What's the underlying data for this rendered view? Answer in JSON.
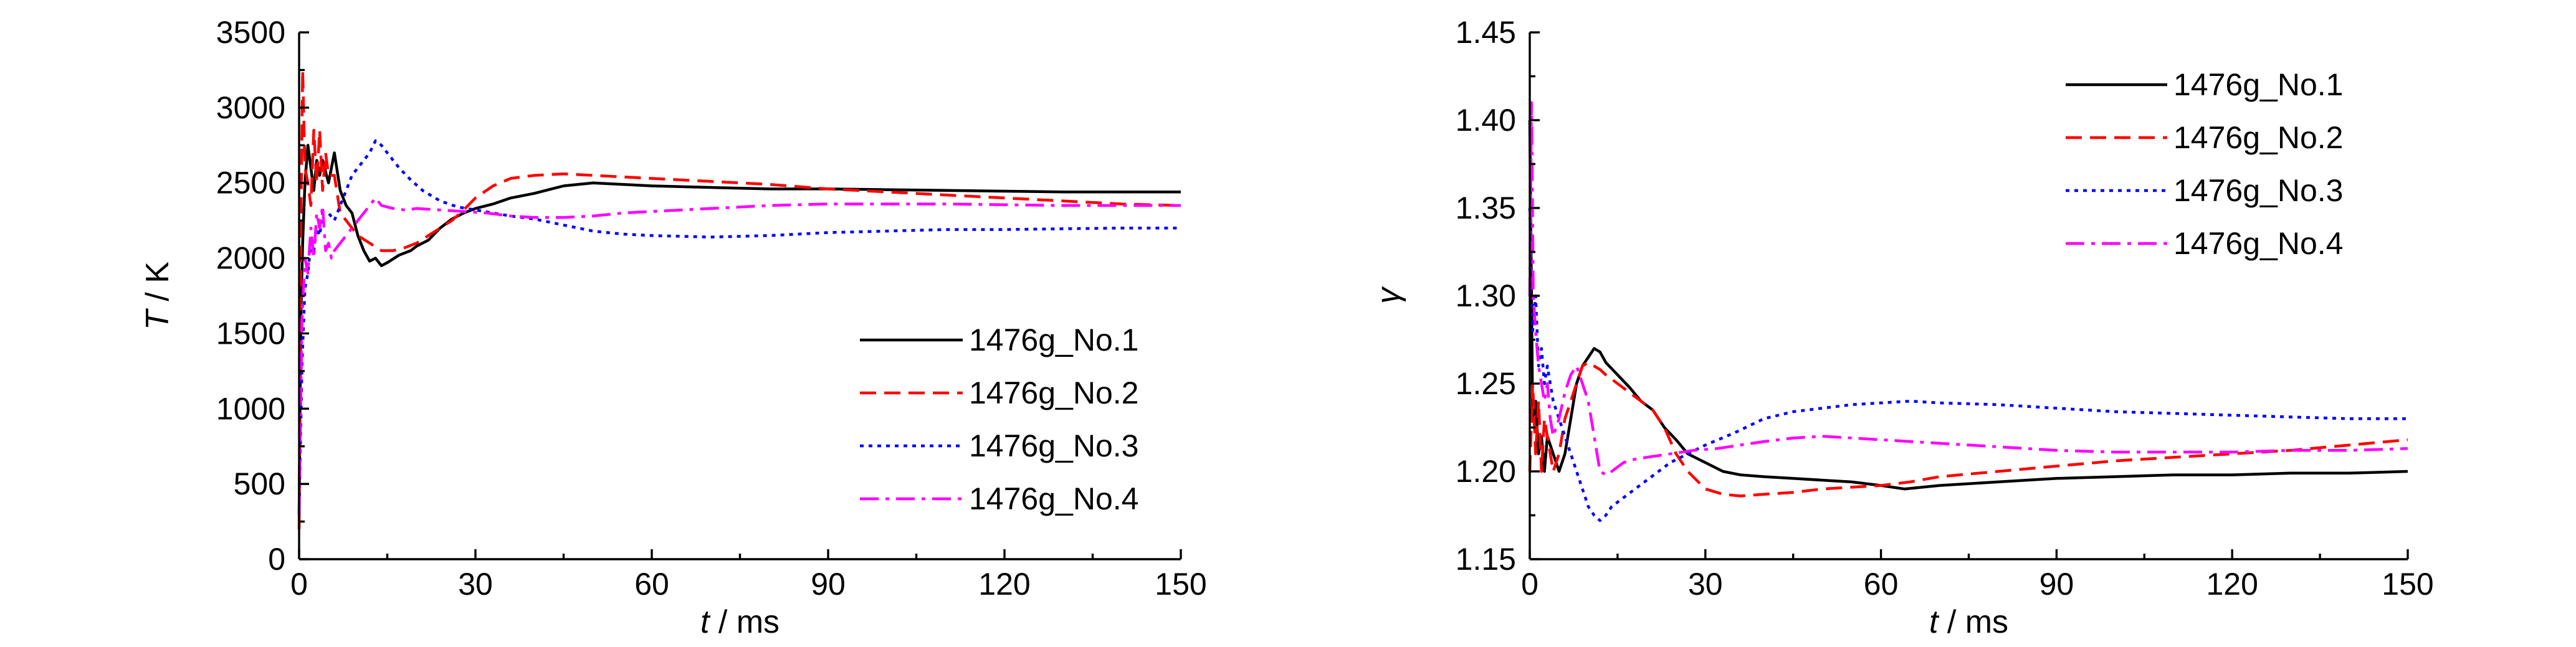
{
  "chart_data": [
    {
      "type": "line",
      "xlabel_var": "t",
      "xlabel_unit": " / ms",
      "ylabel_var": "T",
      "ylabel_unit": " / K",
      "xlim": [
        0,
        150
      ],
      "ylim": [
        0,
        3500
      ],
      "xticks": [
        0,
        30,
        60,
        90,
        120,
        150
      ],
      "yticks": [
        0,
        500,
        1000,
        1500,
        2000,
        2500,
        3000,
        3500
      ],
      "y_decimals": 0,
      "grid": false,
      "legend_position": "center-right",
      "series": [
        {
          "name": "1476g_No.1",
          "color": "#000000",
          "dash": "solid",
          "x": [
            0,
            0.3,
            0.6,
            1,
            1.5,
            2,
            2.5,
            3,
            3.5,
            4,
            5,
            6,
            7,
            8,
            9,
            10,
            11,
            12,
            13,
            14,
            15,
            17,
            19,
            20,
            22,
            24,
            26,
            28,
            30,
            33,
            36,
            40,
            45,
            50,
            55,
            60,
            70,
            80,
            90,
            100,
            110,
            120,
            130,
            140,
            150
          ],
          "y": [
            300,
            1600,
            2100,
            2500,
            2750,
            2600,
            2450,
            2650,
            2550,
            2650,
            2500,
            2700,
            2450,
            2350,
            2300,
            2150,
            2050,
            1980,
            2000,
            1950,
            1970,
            2020,
            2050,
            2080,
            2120,
            2200,
            2260,
            2300,
            2330,
            2360,
            2400,
            2430,
            2480,
            2500,
            2490,
            2480,
            2470,
            2460,
            2460,
            2455,
            2450,
            2445,
            2440,
            2440,
            2440
          ]
        },
        {
          "name": "1476g_No.2",
          "color": "#ff0000",
          "dash": "dashed",
          "x": [
            0,
            0.3,
            0.6,
            1,
            1.5,
            2,
            2.5,
            3,
            3.5,
            4,
            4.5,
            5,
            6,
            7,
            8,
            10,
            12,
            14,
            16,
            18,
            20,
            22,
            24,
            26,
            28,
            30,
            33,
            36,
            40,
            45,
            50,
            60,
            70,
            80,
            90,
            100,
            110,
            120,
            130,
            140,
            150
          ],
          "y": [
            200,
            2200,
            3250,
            2600,
            2500,
            2350,
            2850,
            2500,
            2850,
            2450,
            2700,
            2550,
            2550,
            2300,
            2250,
            2150,
            2100,
            2050,
            2050,
            2070,
            2100,
            2150,
            2200,
            2250,
            2320,
            2400,
            2480,
            2530,
            2550,
            2560,
            2550,
            2530,
            2510,
            2490,
            2460,
            2440,
            2420,
            2400,
            2380,
            2360,
            2350
          ]
        },
        {
          "name": "1476g_No.3",
          "color": "#0000ff",
          "dash": "dotted",
          "x": [
            0,
            0.5,
            1,
            1.5,
            2,
            2.5,
            3,
            3.5,
            4,
            5,
            6,
            7,
            8,
            9,
            10,
            11,
            12,
            13,
            14,
            15,
            17,
            19,
            21,
            24,
            27,
            30,
            33,
            36,
            40,
            45,
            50,
            55,
            60,
            70,
            80,
            90,
            100,
            110,
            120,
            130,
            140,
            150
          ],
          "y": [
            300,
            1300,
            1800,
            1900,
            2100,
            2050,
            2200,
            2150,
            2300,
            2300,
            2250,
            2350,
            2450,
            2550,
            2600,
            2650,
            2700,
            2780,
            2750,
            2700,
            2600,
            2520,
            2450,
            2380,
            2340,
            2320,
            2300,
            2280,
            2260,
            2220,
            2180,
            2160,
            2150,
            2140,
            2150,
            2170,
            2180,
            2190,
            2190,
            2195,
            2200,
            2200
          ]
        },
        {
          "name": "1476g_No.4",
          "color": "#ff00ff",
          "dash": "dashdot",
          "x": [
            0,
            0.5,
            1,
            1.5,
            2,
            2.5,
            3,
            3.5,
            4,
            4.5,
            5,
            5.5,
            6,
            7,
            8,
            9,
            10,
            11,
            12,
            13,
            14,
            16,
            18,
            20,
            24,
            28,
            32,
            36,
            40,
            45,
            50,
            55,
            60,
            70,
            80,
            90,
            100,
            110,
            120,
            130,
            140,
            150
          ],
          "y": [
            300,
            1600,
            2000,
            1900,
            2200,
            2000,
            2300,
            2200,
            2350,
            2050,
            2100,
            2000,
            2050,
            2100,
            2150,
            2200,
            2250,
            2300,
            2350,
            2400,
            2350,
            2330,
            2320,
            2330,
            2320,
            2310,
            2300,
            2280,
            2270,
            2270,
            2280,
            2300,
            2310,
            2330,
            2350,
            2360,
            2360,
            2360,
            2355,
            2350,
            2350,
            2350
          ]
        }
      ]
    },
    {
      "type": "line",
      "xlabel_var": "t",
      "xlabel_unit": " / ms",
      "ylabel_var": "γ",
      "ylabel_unit": "",
      "xlim": [
        0,
        150
      ],
      "ylim": [
        1.15,
        1.45
      ],
      "xticks": [
        0,
        30,
        60,
        90,
        120,
        150
      ],
      "yticks": [
        1.15,
        1.2,
        1.25,
        1.3,
        1.35,
        1.4,
        1.45
      ],
      "y_decimals": 2,
      "grid": false,
      "legend_position": "top-right",
      "series": [
        {
          "name": "1476g_No.1",
          "color": "#000000",
          "dash": "solid",
          "x": [
            0,
            0.5,
            1,
            1.5,
            2,
            2.5,
            3,
            4,
            5,
            6,
            7,
            8,
            9,
            10,
            11,
            12,
            13,
            15,
            17,
            19,
            21,
            23,
            25,
            27,
            30,
            33,
            36,
            40,
            45,
            50,
            55,
            60,
            64,
            70,
            80,
            90,
            100,
            110,
            120,
            130,
            140,
            150
          ],
          "y": [
            1.4,
            1.23,
            1.24,
            1.21,
            1.22,
            1.2,
            1.22,
            1.21,
            1.2,
            1.21,
            1.23,
            1.25,
            1.26,
            1.265,
            1.27,
            1.268,
            1.262,
            1.255,
            1.248,
            1.24,
            1.235,
            1.225,
            1.218,
            1.21,
            1.205,
            1.2,
            1.198,
            1.197,
            1.196,
            1.195,
            1.194,
            1.192,
            1.19,
            1.192,
            1.194,
            1.196,
            1.197,
            1.198,
            1.198,
            1.199,
            1.199,
            1.2
          ]
        },
        {
          "name": "1476g_No.2",
          "color": "#ff0000",
          "dash": "dashed",
          "x": [
            0,
            0.5,
            1,
            1.5,
            2,
            2.5,
            3,
            4,
            5,
            6,
            7,
            8,
            9,
            10,
            11,
            12,
            13,
            15,
            17,
            19,
            21,
            23,
            25,
            27,
            30,
            33,
            36,
            40,
            45,
            50,
            55,
            60,
            65,
            70,
            80,
            90,
            100,
            110,
            120,
            130,
            140,
            150
          ],
          "y": [
            1.2,
            1.25,
            1.21,
            1.24,
            1.2,
            1.23,
            1.22,
            1.2,
            1.21,
            1.23,
            1.24,
            1.25,
            1.26,
            1.262,
            1.26,
            1.258,
            1.255,
            1.25,
            1.245,
            1.24,
            1.235,
            1.225,
            1.21,
            1.2,
            1.19,
            1.187,
            1.186,
            1.187,
            1.188,
            1.19,
            1.191,
            1.192,
            1.194,
            1.197,
            1.2,
            1.203,
            1.206,
            1.208,
            1.21,
            1.212,
            1.215,
            1.218
          ]
        },
        {
          "name": "1476g_No.3",
          "color": "#0000ff",
          "dash": "dotted",
          "x": [
            0,
            0.5,
            1,
            1.5,
            2,
            2.5,
            3,
            4,
            5,
            6,
            7,
            8,
            9,
            10,
            11,
            12,
            13,
            14,
            16,
            18,
            20,
            22,
            24,
            27,
            30,
            35,
            40,
            45,
            50,
            55,
            60,
            65,
            70,
            80,
            90,
            100,
            110,
            120,
            130,
            140,
            150
          ],
          "y": [
            1.35,
            1.28,
            1.3,
            1.26,
            1.27,
            1.25,
            1.26,
            1.24,
            1.23,
            1.22,
            1.21,
            1.2,
            1.19,
            1.18,
            1.175,
            1.172,
            1.175,
            1.18,
            1.185,
            1.19,
            1.195,
            1.2,
            1.205,
            1.21,
            1.215,
            1.222,
            1.23,
            1.234,
            1.236,
            1.238,
            1.239,
            1.24,
            1.239,
            1.238,
            1.236,
            1.234,
            1.233,
            1.232,
            1.231,
            1.23,
            1.23
          ]
        },
        {
          "name": "1476g_No.4",
          "color": "#ff00ff",
          "dash": "dashdot",
          "x": [
            0,
            0.3,
            0.6,
            1,
            1.5,
            2,
            2.5,
            3,
            3.5,
            4,
            5,
            6,
            7,
            8,
            9,
            10,
            11,
            12,
            13,
            14,
            16,
            18,
            20,
            24,
            28,
            32,
            36,
            40,
            45,
            50,
            55,
            60,
            70,
            80,
            90,
            100,
            110,
            120,
            130,
            140,
            150
          ],
          "y": [
            1.3,
            1.41,
            1.3,
            1.28,
            1.26,
            1.25,
            1.24,
            1.25,
            1.23,
            1.22,
            1.23,
            1.245,
            1.255,
            1.26,
            1.25,
            1.24,
            1.22,
            1.2,
            1.198,
            1.2,
            1.205,
            1.207,
            1.208,
            1.21,
            1.212,
            1.213,
            1.215,
            1.217,
            1.219,
            1.22,
            1.219,
            1.218,
            1.216,
            1.214,
            1.212,
            1.211,
            1.211,
            1.211,
            1.212,
            1.212,
            1.213
          ]
        }
      ]
    }
  ]
}
